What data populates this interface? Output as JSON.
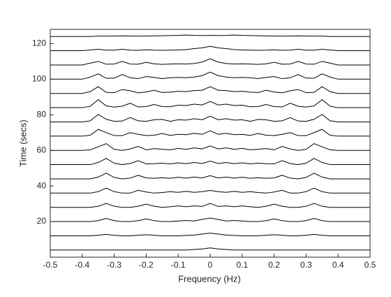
{
  "chart_data": {
    "type": "waterfall",
    "xlabel": "Frequency (Hz)",
    "ylabel": "Time (secs)",
    "xlim": [
      -0.5,
      0.5
    ],
    "ylim": [
      0,
      128
    ],
    "xticks": [
      -0.5,
      -0.4,
      -0.3,
      -0.2,
      -0.1,
      0,
      0.1,
      0.2,
      0.3,
      0.4,
      0.5
    ],
    "yticks": [
      20,
      40,
      60,
      80,
      100,
      120
    ],
    "color": "#000000",
    "x": [
      -0.5,
      -0.475,
      -0.45,
      -0.425,
      -0.4,
      -0.375,
      -0.35,
      -0.325,
      -0.3,
      -0.275,
      -0.25,
      -0.225,
      -0.2,
      -0.175,
      -0.15,
      -0.125,
      -0.1,
      -0.075,
      -0.05,
      -0.025,
      0,
      0.025,
      0.05,
      0.075,
      0.1,
      0.125,
      0.15,
      0.175,
      0.2,
      0.225,
      0.25,
      0.275,
      0.3,
      0.325,
      0.35,
      0.375,
      0.4,
      0.425,
      0.45,
      0.475,
      0.5
    ],
    "series": [
      {
        "offset": 4,
        "values": [
          0,
          0,
          0,
          0,
          0,
          0,
          0,
          0,
          0,
          0,
          0,
          0,
          0,
          0,
          0,
          0,
          0,
          0,
          0.3,
          0.6,
          1.2,
          0.6,
          0.3,
          0,
          0,
          0,
          0,
          0,
          0,
          0,
          0,
          0,
          0,
          0,
          0,
          0,
          0,
          0,
          0,
          0,
          0
        ]
      },
      {
        "offset": 12,
        "values": [
          0,
          0,
          0,
          0,
          0,
          0,
          0.3,
          0.8,
          0.3,
          0,
          0,
          0.3,
          0.6,
          0.3,
          0,
          0,
          0,
          0.2,
          0.4,
          1.0,
          1.5,
          1.0,
          0.4,
          0.2,
          0,
          0,
          0,
          0.3,
          0.6,
          0.3,
          0,
          0,
          0.3,
          0.8,
          0.3,
          0,
          0,
          0,
          0,
          0,
          0
        ]
      },
      {
        "offset": 20,
        "values": [
          0,
          0,
          0,
          0,
          0,
          0,
          0.5,
          1.8,
          0.5,
          0,
          0,
          0.5,
          1.5,
          0.5,
          0,
          0,
          0.3,
          0.6,
          0.3,
          1.2,
          2,
          1.2,
          0.3,
          0.6,
          0.3,
          0,
          0,
          0.5,
          1.5,
          0.5,
          0,
          0,
          0.5,
          1.8,
          0.5,
          0,
          0,
          0,
          0,
          0,
          0
        ]
      },
      {
        "offset": 28,
        "values": [
          0,
          0,
          0,
          0,
          0,
          0,
          0.6,
          2.2,
          0.6,
          0,
          0,
          0.6,
          1.8,
          0.6,
          0,
          0.3,
          0.8,
          0.3,
          0.8,
          0.5,
          2.2,
          0.5,
          0.8,
          0.3,
          0.8,
          0.3,
          0,
          0.6,
          1.8,
          0.6,
          0,
          0,
          0.6,
          2.2,
          0.6,
          0,
          0,
          0,
          0,
          0,
          0
        ]
      },
      {
        "offset": 36,
        "values": [
          0,
          0,
          0,
          0,
          0,
          0,
          0.8,
          2.8,
          0.8,
          0,
          0,
          1.6,
          0.6,
          0,
          0.3,
          0.8,
          0.4,
          1.0,
          0.4,
          0.8,
          1.5,
          0.8,
          0.4,
          1.0,
          0.4,
          0.8,
          0.3,
          0,
          0.6,
          1.6,
          0,
          0,
          0.8,
          2.8,
          0.8,
          0,
          0,
          0,
          0,
          0,
          0
        ]
      },
      {
        "offset": 44,
        "values": [
          0,
          0,
          0,
          0,
          0,
          0,
          1.0,
          3.2,
          0.8,
          0,
          0.4,
          2.0,
          0.5,
          0.3,
          0.6,
          0.3,
          0.9,
          0.4,
          1.0,
          0.5,
          1.8,
          0.5,
          1.0,
          0.4,
          0.9,
          0.3,
          0.6,
          0.3,
          0.5,
          2.0,
          0.4,
          0,
          0.8,
          3.2,
          1.0,
          0,
          0,
          0,
          0,
          0,
          0
        ]
      },
      {
        "offset": 52,
        "values": [
          0,
          0,
          0,
          0,
          0,
          0,
          1.2,
          3.5,
          0.8,
          0,
          0.6,
          2.2,
          0.4,
          0.5,
          0.8,
          0.4,
          1.0,
          0.5,
          1.2,
          0.6,
          2.0,
          0.6,
          1.2,
          0.5,
          1.0,
          0.4,
          0.8,
          0.5,
          0.4,
          2.2,
          0.6,
          0,
          0.8,
          3.5,
          1.2,
          0,
          0,
          0,
          0,
          0,
          0
        ]
      },
      {
        "offset": 60,
        "values": [
          0,
          0,
          0,
          0,
          0,
          0.3,
          2.0,
          3.8,
          0.6,
          0,
          0.8,
          2.2,
          0.3,
          1.0,
          0.6,
          0.3,
          1.1,
          0.6,
          1.4,
          0.8,
          2.5,
          0.8,
          1.4,
          0.6,
          1.1,
          0.3,
          0.6,
          1.0,
          0.3,
          2.2,
          0.8,
          0,
          0.6,
          3.8,
          2.0,
          0.3,
          0,
          0,
          0,
          0,
          0
        ]
      },
      {
        "offset": 68,
        "values": [
          0,
          0,
          0,
          0,
          0,
          0.5,
          3.8,
          2.0,
          0.3,
          0.3,
          2.0,
          1.0,
          0.3,
          0.5,
          1.5,
          0.4,
          1.0,
          0.8,
          1.6,
          1.0,
          3,
          1.0,
          1.6,
          0.8,
          1.0,
          0.4,
          1.5,
          0.5,
          0.3,
          1.0,
          2.0,
          0.3,
          0.3,
          2.0,
          3.8,
          0.5,
          0,
          0,
          0,
          0,
          0
        ]
      },
      {
        "offset": 76,
        "values": [
          0,
          0,
          0,
          0,
          0,
          0.6,
          4.2,
          1.5,
          0.3,
          0.5,
          2.4,
          0.6,
          0.3,
          1.2,
          1.4,
          0.3,
          1.2,
          1.0,
          1.8,
          1.2,
          3.2,
          1.2,
          1.8,
          1.0,
          1.2,
          0.3,
          1.4,
          1.2,
          0.3,
          0.6,
          2.4,
          0.5,
          0.3,
          1.5,
          4.2,
          0.6,
          0,
          0,
          0,
          0,
          0
        ]
      },
      {
        "offset": 84,
        "values": [
          0,
          0,
          0,
          0,
          0,
          0.8,
          4.5,
          1.0,
          0.3,
          0.8,
          2.5,
          0.4,
          0.6,
          1.8,
          0.6,
          0.5,
          1.4,
          1.2,
          2.0,
          1.5,
          3.5,
          1.5,
          2.0,
          1.2,
          1.4,
          0.5,
          0.6,
          1.8,
          0.6,
          0.4,
          2.5,
          0.8,
          0.3,
          1.0,
          4.5,
          0.8,
          0,
          0,
          0,
          0,
          0
        ]
      },
      {
        "offset": 92,
        "values": [
          0,
          0,
          0,
          0,
          0,
          1.0,
          3.8,
          0.6,
          0.4,
          2.2,
          1.5,
          0.3,
          0.8,
          1.8,
          0.5,
          0.7,
          1.2,
          1.0,
          1.6,
          1.8,
          3.8,
          1.8,
          1.6,
          1.0,
          1.2,
          0.7,
          0.5,
          1.8,
          0.8,
          0.3,
          1.5,
          2.2,
          0.4,
          0.6,
          3.8,
          1.0,
          0,
          0,
          0,
          0,
          0
        ]
      },
      {
        "offset": 100,
        "values": [
          0,
          0,
          0,
          0,
          0,
          1.2,
          3.0,
          0.5,
          0.6,
          2.6,
          0.8,
          0.3,
          1.5,
          1.0,
          0.3,
          0.8,
          1.0,
          0.8,
          1.2,
          2.0,
          4,
          2.0,
          1.2,
          0.8,
          1.0,
          0.8,
          0.3,
          1.0,
          1.5,
          0.3,
          0.8,
          2.6,
          0.6,
          0.5,
          3.0,
          1.2,
          0,
          0,
          0,
          0,
          0
        ]
      },
      {
        "offset": 108,
        "values": [
          0,
          0,
          0,
          0,
          0,
          1.0,
          2.0,
          0.4,
          0.5,
          2.0,
          0.5,
          0.4,
          1.5,
          0.6,
          0.3,
          0.5,
          0.6,
          0.5,
          0.8,
          1.6,
          3.5,
          1.6,
          0.8,
          0.5,
          0.6,
          0.5,
          0.3,
          0.6,
          1.5,
          0.4,
          0.5,
          2.0,
          0.5,
          0.4,
          2.0,
          1.0,
          0,
          0,
          0,
          0,
          0
        ]
      },
      {
        "offset": 116,
        "values": [
          0,
          0,
          0,
          0,
          0,
          0.4,
          0.8,
          0.3,
          0.3,
          0.8,
          0.3,
          0.2,
          0.5,
          0.3,
          0.2,
          0.3,
          0.4,
          0.6,
          1.2,
          1.6,
          2.5,
          1.6,
          1.2,
          0.6,
          0.4,
          0.3,
          0.2,
          0.3,
          0.5,
          0.2,
          0.3,
          0.8,
          0.3,
          0.3,
          0.8,
          0.4,
          0,
          0,
          0,
          0,
          0
        ]
      },
      {
        "offset": 124,
        "values": [
          0,
          0,
          0,
          0,
          0,
          0,
          0.2,
          0.2,
          0.2,
          0.3,
          0.2,
          0.2,
          0.2,
          0.3,
          0.4,
          0.5,
          0.6,
          0.8,
          0.6,
          0.5,
          0.6,
          0.5,
          0.6,
          0.8,
          0.6,
          0.5,
          0.4,
          0.3,
          0.2,
          0.2,
          0.2,
          0.3,
          0.2,
          0.2,
          0.2,
          0,
          0,
          0,
          0,
          0,
          0
        ]
      }
    ]
  }
}
